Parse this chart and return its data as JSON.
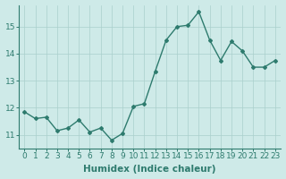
{
  "x": [
    0,
    1,
    2,
    3,
    4,
    5,
    6,
    7,
    8,
    9,
    10,
    11,
    12,
    13,
    14,
    15,
    16,
    17,
    18,
    19,
    20,
    21,
    22,
    23
  ],
  "y": [
    11.85,
    11.6,
    11.65,
    11.15,
    11.25,
    11.55,
    11.1,
    11.25,
    10.8,
    11.05,
    12.05,
    12.15,
    13.35,
    14.5,
    15.0,
    15.05,
    15.55,
    14.5,
    13.75,
    14.45,
    14.1,
    13.5,
    13.5,
    13.75
  ],
  "line_color": "#2e7b6e",
  "marker": "D",
  "marker_size": 2.0,
  "linewidth": 1.0,
  "xlabel": "Humidex (Indice chaleur)",
  "xlim": [
    -0.5,
    23.5
  ],
  "ylim": [
    10.5,
    15.8
  ],
  "yticks": [
    11,
    12,
    13,
    14,
    15
  ],
  "xticks": [
    0,
    1,
    2,
    3,
    4,
    5,
    6,
    7,
    8,
    9,
    10,
    11,
    12,
    13,
    14,
    15,
    16,
    17,
    18,
    19,
    20,
    21,
    22,
    23
  ],
  "bg_color": "#ceeae8",
  "grid_color": "#aacfcc",
  "tick_fontsize": 6.5,
  "xlabel_fontsize": 7.5
}
